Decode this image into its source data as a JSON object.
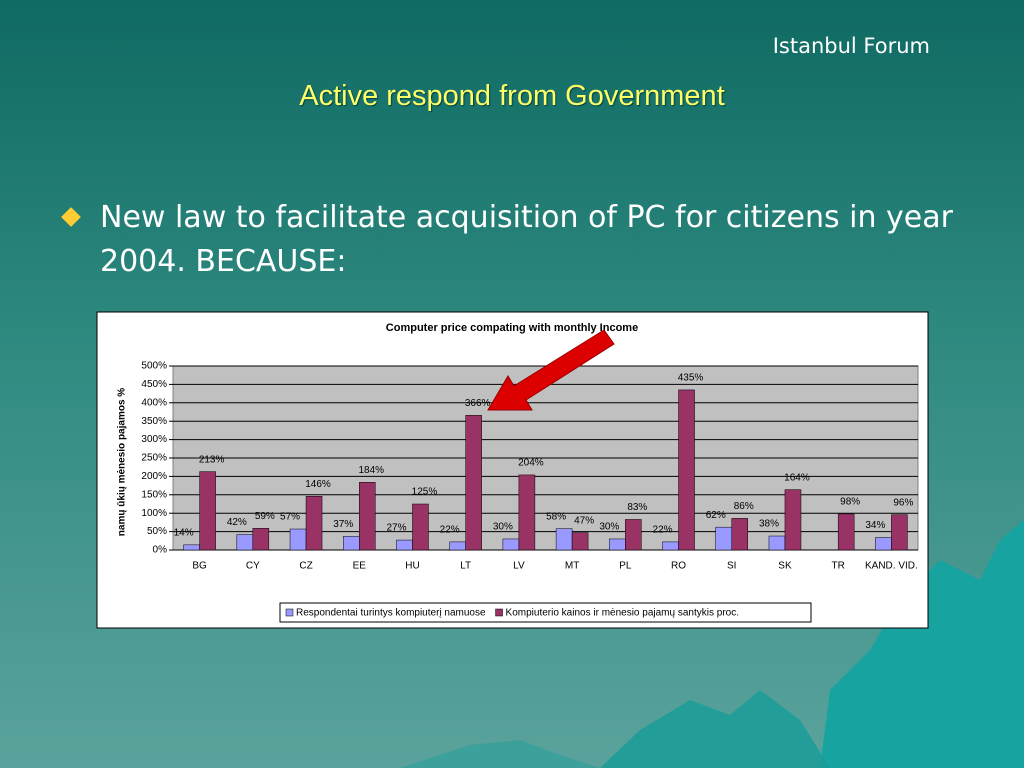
{
  "header": "Istanbul Forum",
  "title": "Active respond from Government",
  "bullet": "New law to facilitate acquisition of PC for citizens in year 2004. BECAUSE:",
  "chart_data": {
    "type": "bar",
    "title": "Computer price compating with monthly Income",
    "ylabel": "namų ūkių mėnesio pajamos %",
    "categories": [
      "BG",
      "CY",
      "CZ",
      "EE",
      "HU",
      "LT",
      "LV",
      "MT",
      "PL",
      "RO",
      "SI",
      "SK",
      "TR",
      "KAND. VID."
    ],
    "series": [
      {
        "name": "Respondentai turintys kompiuterį namuose",
        "color": "#9999ff",
        "values": [
          14,
          42,
          57,
          37,
          27,
          22,
          30,
          58,
          30,
          22,
          62,
          38,
          null,
          34
        ],
        "value_labels": [
          "14%",
          "42%",
          "57%",
          "37%",
          "27%",
          "22%",
          "30%",
          "58%",
          "30%",
          "22%",
          "62%",
          "38%",
          null,
          "34%"
        ]
      },
      {
        "name": "Kompiuterio kainos ir mėnesio pajamų santykis proc.",
        "color": "#993366",
        "values": [
          213,
          59,
          146,
          184,
          125,
          366,
          204,
          47,
          83,
          435,
          86,
          164,
          98,
          96
        ],
        "value_labels": [
          "213%",
          "59%",
          "146%",
          "184%",
          "125%",
          "366%",
          "204%",
          "47%",
          "83%",
          "435%",
          "86%",
          "164%",
          "98%",
          "96%"
        ]
      }
    ],
    "ylim": [
      0,
      500
    ],
    "yticks": [
      {
        "value": 0,
        "label": "0%"
      },
      {
        "value": 50,
        "label": "50%"
      },
      {
        "value": 100,
        "label": "100%"
      },
      {
        "value": 150,
        "label": "150%"
      },
      {
        "value": 200,
        "label": "200%"
      },
      {
        "value": 250,
        "label": "250%"
      },
      {
        "value": 300,
        "label": "300%"
      },
      {
        "value": 350,
        "label": "350%"
      },
      {
        "value": 400,
        "label": "400%"
      },
      {
        "value": 450,
        "label": "450%"
      },
      {
        "value": 500,
        "label": "500%"
      }
    ],
    "grid": true,
    "legend": "bottom"
  }
}
